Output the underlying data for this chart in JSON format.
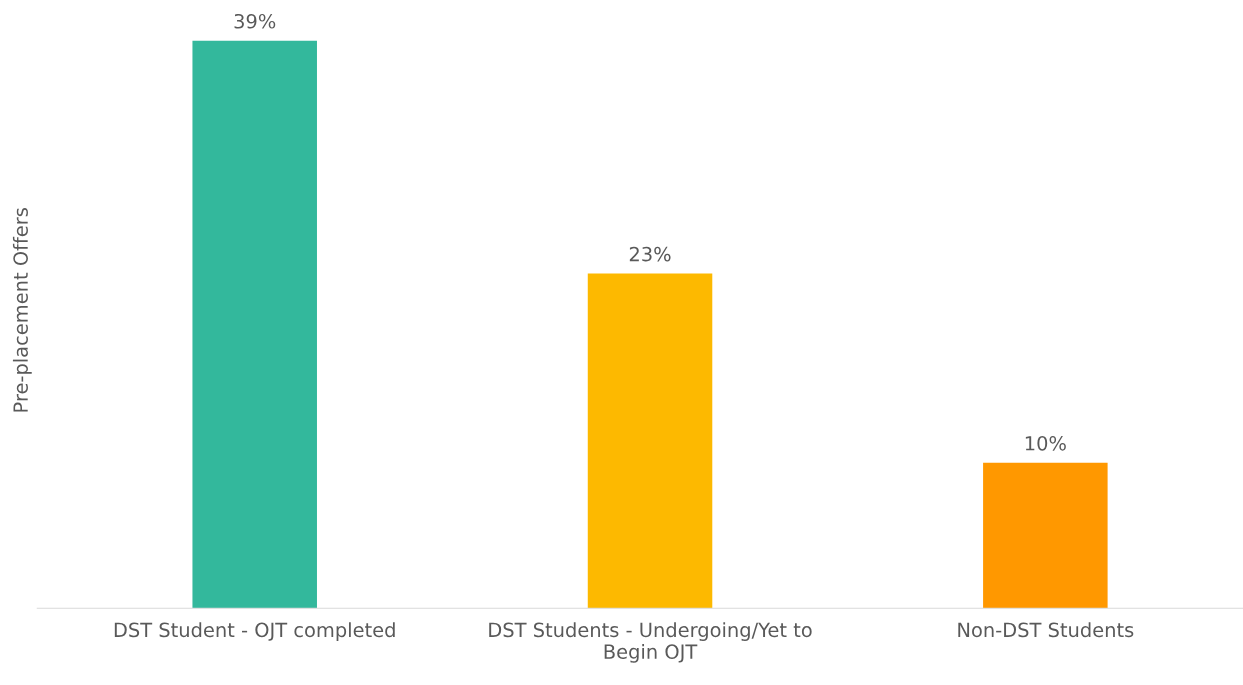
{
  "chart_data": {
    "type": "bar",
    "ylabel": "Pre-placement Offers",
    "categories": [
      "DST Student - OJT completed",
      "DST Students - Undergoing/Yet to\nBegin OJT",
      "Non-DST Students"
    ],
    "values": [
      39,
      23,
      10
    ],
    "colors": [
      "#33b89c",
      "#fdb900",
      "#ff9800"
    ],
    "value_labels": [
      "39%",
      "23%",
      "10%"
    ],
    "grid": false,
    "legend": false
  }
}
